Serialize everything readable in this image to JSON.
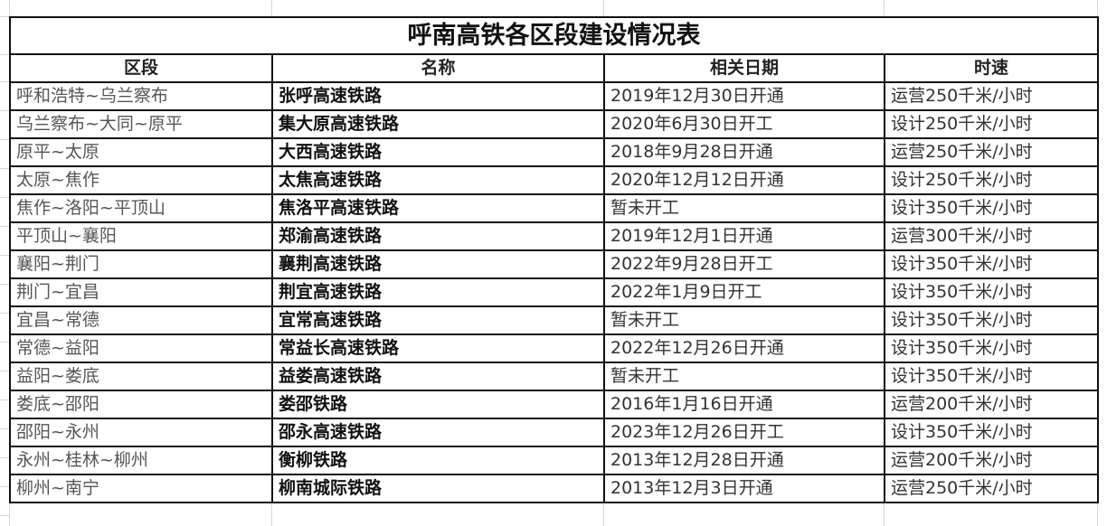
{
  "table": {
    "title": "呼南高铁各区段建设情况表",
    "headers": [
      "区段",
      "名称",
      "相关日期",
      "时速"
    ],
    "rows": [
      [
        "呼和浩特~乌兰察布",
        "张呼高速铁路",
        "2019年12月30日开通",
        "运营250千米/小时"
      ],
      [
        "乌兰察布~大同~原平",
        "集大原高速铁路",
        "2020年6月30日开工",
        "设计250千米/小时"
      ],
      [
        "原平~太原",
        "大西高速铁路",
        "2018年9月28日开通",
        "运营250千米/小时"
      ],
      [
        "太原~焦作",
        "太焦高速铁路",
        "2020年12月12日开通",
        "设计250千米/小时"
      ],
      [
        "焦作~洛阳~平顶山",
        "焦洛平高速铁路",
        "暂未开工",
        "设计350千米/小时"
      ],
      [
        "平顶山~襄阳",
        "郑渝高速铁路",
        "2019年12月1日开通",
        "运营300千米/小时"
      ],
      [
        "襄阳~荆门",
        "襄荆高速铁路",
        "2022年9月28日开工",
        "设计350千米/小时"
      ],
      [
        "荆门~宜昌",
        "荆宜高速铁路",
        "2022年1月9日开工",
        "设计350千米/小时"
      ],
      [
        "宜昌~常德",
        "宜常高速铁路",
        "暂未开工",
        "设计350千米/小时"
      ],
      [
        "常德~益阳",
        "常益长高速铁路",
        "2022年12月26日开通",
        "设计350千米/小时"
      ],
      [
        "益阳~娄底",
        "益娄高速铁路",
        "暂未开工",
        "设计350千米/小时"
      ],
      [
        "娄底~邵阳",
        "娄邵铁路",
        "2016年1月16日开通",
        "运营200千米/小时"
      ],
      [
        "邵阳~永州",
        "邵永高速铁路",
        "2023年12月26日开工",
        "设计350千米/小时"
      ],
      [
        "永州~桂林~柳州",
        "衡柳铁路",
        "2013年12月28日开通",
        "运营200千米/小时"
      ],
      [
        "柳州~南宁",
        "柳南城际铁路",
        "2013年12月3日开通",
        "运营250千米/小时"
      ]
    ]
  }
}
